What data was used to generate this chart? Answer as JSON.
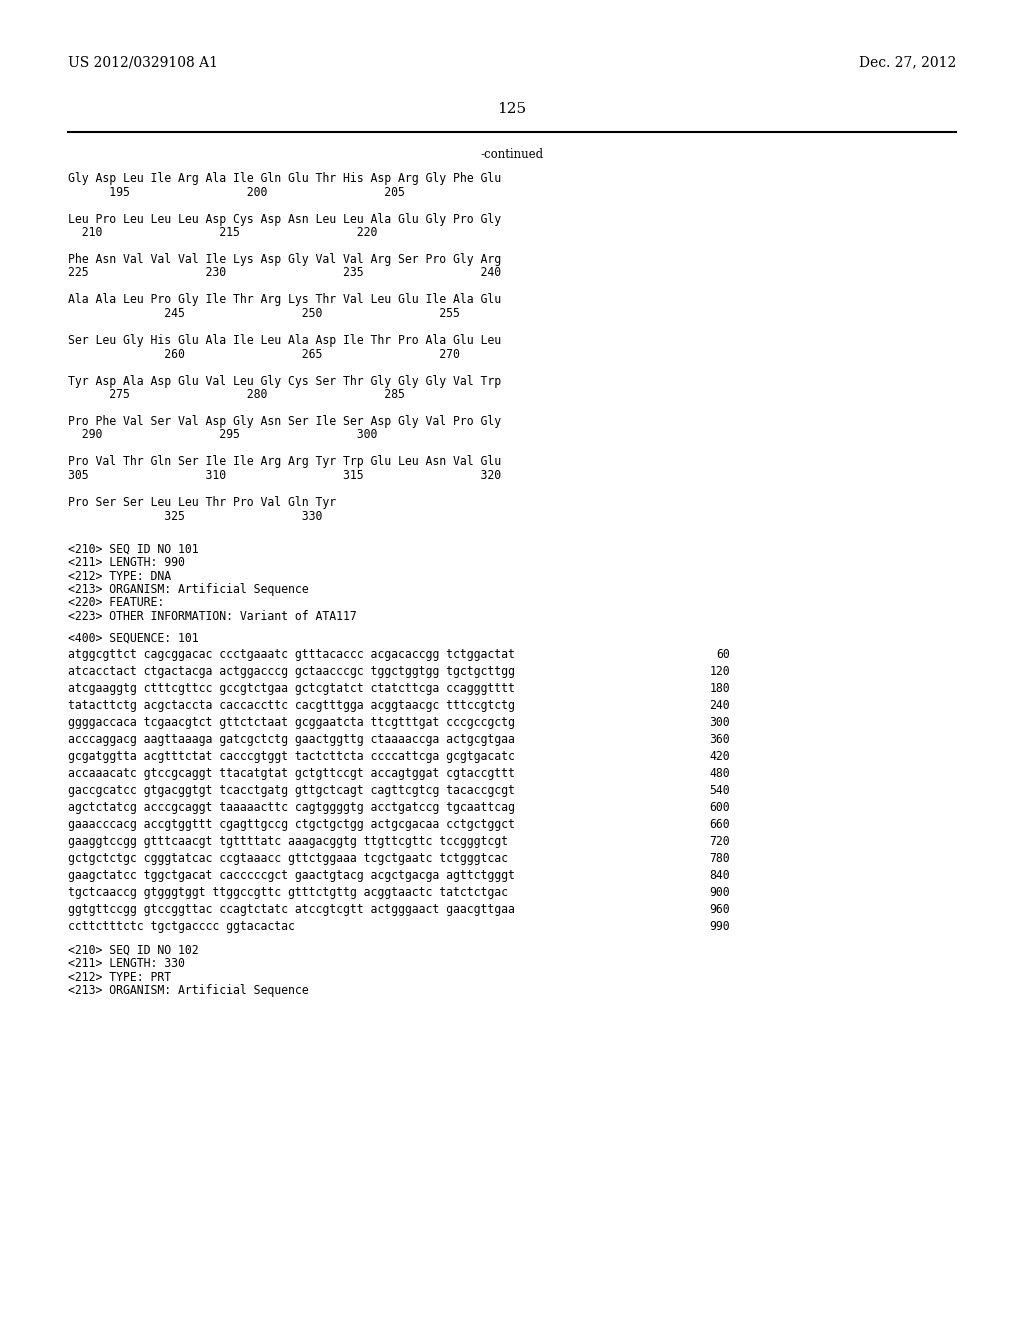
{
  "header_left": "US 2012/0329108 A1",
  "header_right": "Dec. 27, 2012",
  "page_number": "125",
  "continued_label": "-continued",
  "background_color": "#ffffff",
  "text_color": "#000000",
  "font_size_header": 10.0,
  "font_size_page": 11.0,
  "font_size_body": 8.5,
  "sequence_blocks": [
    {
      "line1": "Gly Asp Leu Ile Arg Ala Ile Gln Glu Thr His Asp Arg Gly Phe Glu",
      "line2": "      195                 200                 205"
    },
    {
      "line1": "Leu Pro Leu Leu Leu Asp Cys Asp Asn Leu Leu Ala Glu Gly Pro Gly",
      "line2": "  210                 215                 220"
    },
    {
      "line1": "Phe Asn Val Val Val Ile Lys Asp Gly Val Val Arg Ser Pro Gly Arg",
      "line2": "225                 230                 235                 240"
    },
    {
      "line1": "Ala Ala Leu Pro Gly Ile Thr Arg Lys Thr Val Leu Glu Ile Ala Glu",
      "line2": "              245                 250                 255"
    },
    {
      "line1": "Ser Leu Gly His Glu Ala Ile Leu Ala Asp Ile Thr Pro Ala Glu Leu",
      "line2": "              260                 265                 270"
    },
    {
      "line1": "Tyr Asp Ala Asp Glu Val Leu Gly Cys Ser Thr Gly Gly Gly Val Trp",
      "line2": "      275                 280                 285"
    },
    {
      "line1": "Pro Phe Val Ser Val Asp Gly Asn Ser Ile Ser Asp Gly Val Pro Gly",
      "line2": "  290                 295                 300"
    },
    {
      "line1": "Pro Val Thr Gln Ser Ile Ile Arg Arg Tyr Trp Glu Leu Asn Val Glu",
      "line2": "305                 310                 315                 320"
    },
    {
      "line1": "Pro Ser Ser Leu Leu Thr Pro Val Gln Tyr",
      "line2": "              325                 330"
    }
  ],
  "metadata_lines": [
    "<210> SEQ ID NO 101",
    "<211> LENGTH: 990",
    "<212> TYPE: DNA",
    "<213> ORGANISM: Artificial Sequence",
    "<220> FEATURE:",
    "<223> OTHER INFORMATION: Variant of ATA117"
  ],
  "sequence_label": "<400> SEQUENCE: 101",
  "dna_sequences": [
    {
      "seq": "atggcgttct cagcggacac ccctgaaatc gtttacaccc acgacaccgg tctggactat",
      "num": "60"
    },
    {
      "seq": "atcacctact ctgactacga actggacccg gctaacccgc tggctggtgg tgctgcttgg",
      "num": "120"
    },
    {
      "seq": "atcgaaggtg ctttcgttcc gccgtctgaa gctcgtatct ctatcttcga ccagggtttt",
      "num": "180"
    },
    {
      "seq": "tatacttctg acgctaccta caccaccttc cacgtttgga acggtaacgc tttccgtctg",
      "num": "240"
    },
    {
      "seq": "ggggaccaca tcgaacgtct gttctctaat gcggaatcta ttcgtttgat cccgccgctg",
      "num": "300"
    },
    {
      "seq": "acccaggacg aagttaaaga gatcgctctg gaactggttg ctaaaaccga actgcgtgaa",
      "num": "360"
    },
    {
      "seq": "gcgatggtta acgtttctat cacccgtggt tactcttcta ccccattcga gcgtgacatc",
      "num": "420"
    },
    {
      "seq": "accaaacatc gtccgcaggt ttacatgtat gctgttccgt accagtggat cgtaccgttt",
      "num": "480"
    },
    {
      "seq": "gaccgcatcc gtgacggtgt tcacctgatg gttgctcagt cagttcgtcg tacaccgcgt",
      "num": "540"
    },
    {
      "seq": "agctctatcg acccgcaggt taaaaacttc cagtggggtg acctgatccg tgcaattcag",
      "num": "600"
    },
    {
      "seq": "gaaacccacg accgtggttt cgagttgccg ctgctgctgg actgcgacaa cctgctggct",
      "num": "660"
    },
    {
      "seq": "gaaggtccgg gtttcaacgt tgttttatc aaagacggtg ttgttcgttc tccgggtcgt",
      "num": "720"
    },
    {
      "seq": "gctgctctgc cgggtatcac ccgtaaacc gttctggaaa tcgctgaatc tctgggtcac",
      "num": "780"
    },
    {
      "seq": "gaagctatcc tggctgacat cacccccgct gaactgtacg acgctgacga agttctgggt",
      "num": "840"
    },
    {
      "seq": "tgctcaaccg gtgggtggt ttggccgttc gtttctgttg acggtaactc tatctctgac",
      "num": "900"
    },
    {
      "seq": "ggtgttccgg gtccggttac ccagtctatc atccgtcgtt actgggaact gaacgttgaa",
      "num": "960"
    },
    {
      "seq": "ccttctttctc tgctgacccc ggtacactac",
      "num": "990"
    }
  ],
  "footer_metadata": [
    "<210> SEQ ID NO 102",
    "<211> LENGTH: 330",
    "<212> TYPE: PRT",
    "<213> ORGANISM: Artificial Sequence"
  ]
}
